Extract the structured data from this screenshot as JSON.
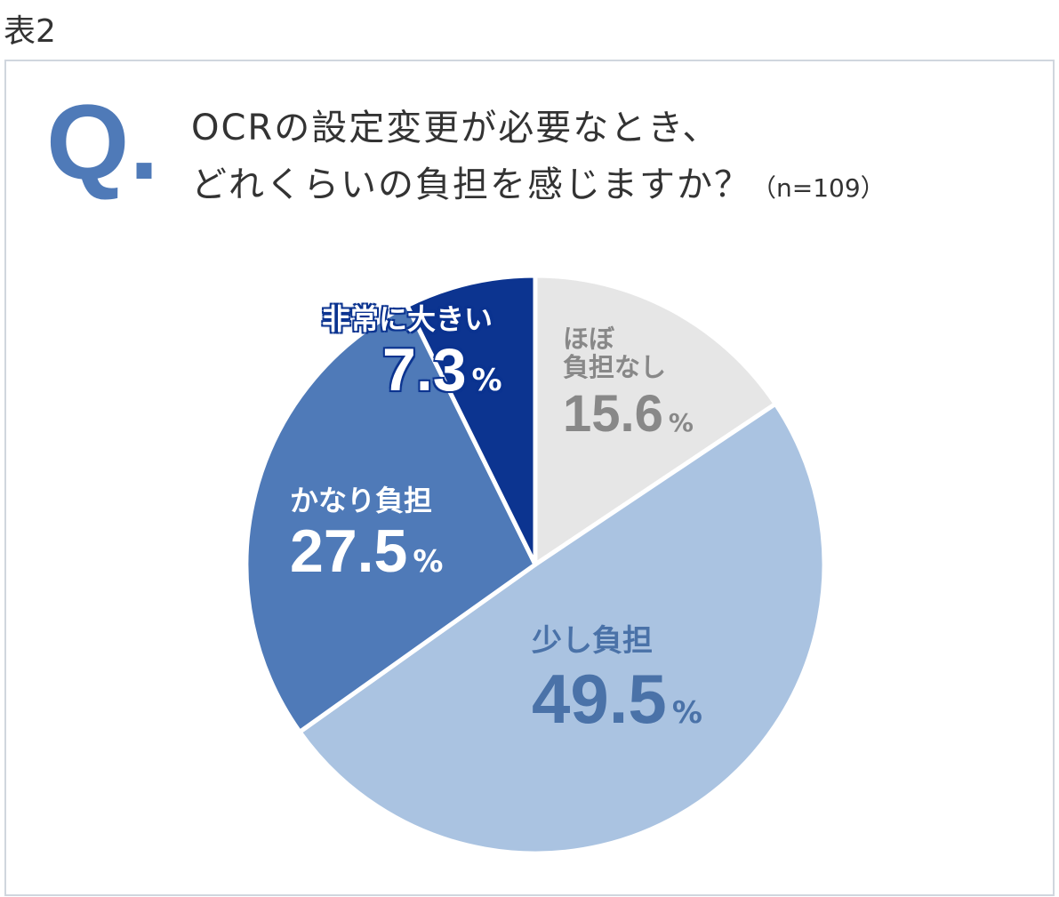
{
  "header": {
    "table_label": "表2"
  },
  "question": {
    "mark": "Q.",
    "line1": "OCRの設定変更が必要なとき、",
    "line2": "どれくらいの負担を感じますか？",
    "sample": "（n=109）"
  },
  "chart_data": {
    "type": "pie",
    "start": "top",
    "direction": "clockwise",
    "unit": "%",
    "slices": [
      {
        "label": "ほぼ負担なし",
        "label_lines": [
          "ほぼ",
          "負担なし"
        ],
        "value": 15.6,
        "value_text": "15.6",
        "color": "#e6e6e6",
        "text_color": "#888888"
      },
      {
        "label": "少し負担",
        "value": 49.5,
        "value_text": "49.5",
        "color": "#aac3e1",
        "text_color": "#4a72a8"
      },
      {
        "label": "かなり負担",
        "value": 27.5,
        "value_text": "27.5",
        "color": "#4f7ab8",
        "text_color": "#ffffff"
      },
      {
        "label": "非常に大きい",
        "value": 7.3,
        "value_text": "7.3",
        "color": "#0c3490",
        "text_color": "#ffffff"
      }
    ]
  }
}
